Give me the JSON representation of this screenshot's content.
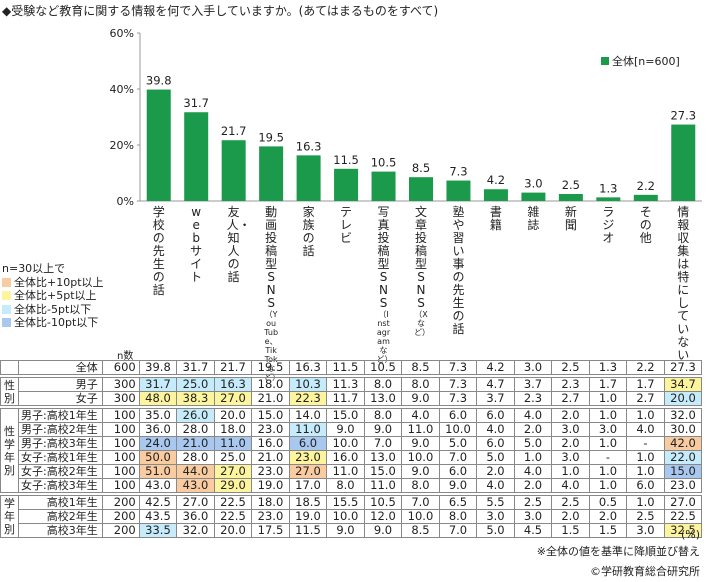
{
  "title": "◆受験など教育に関する情報を何で入手していますか。(あてはまるものをすべて)",
  "legend_label": "全体[n=600]",
  "colors": {
    "bar": "#1a9a4a",
    "orange": "#f8cba0",
    "yellow": "#fdf59e",
    "light_blue": "#c6ecfb",
    "blue": "#a9c8f0"
  },
  "chart_data": {
    "type": "bar",
    "categories": [
      "学校の先生の話",
      "webサイト",
      "友人・知人の話",
      "動画投稿型SNS",
      "家族の話",
      "テレビ",
      "写真投稿型SNS",
      "文章投稿型SNS",
      "塾や習い事の先生の話",
      "書籍",
      "雑誌",
      "新聞",
      "ラジオ",
      "その他",
      "情報収集は特にしていない"
    ],
    "category_subs": [
      "",
      "",
      "",
      "（YouTube、TikTokなど）",
      "",
      "",
      "（Instagramなど）",
      "（Xなど）",
      "",
      "",
      "",
      "",
      "",
      "",
      ""
    ],
    "series": [
      {
        "name": "全体[n=600]",
        "values": [
          39.8,
          31.7,
          21.7,
          19.5,
          16.3,
          11.5,
          10.5,
          8.5,
          7.3,
          4.2,
          3.0,
          2.5,
          1.3,
          2.2,
          27.3
        ]
      }
    ],
    "yticks": [
      "0%",
      "20%",
      "40%",
      "60%"
    ],
    "ylim": [
      0,
      60
    ],
    "grid": false,
    "legend": "top-right"
  },
  "key": {
    "header": "n=30以上で",
    "items": [
      {
        "label": "全体比+10pt以上",
        "color": "#f8cba0"
      },
      {
        "label": "全体比+5pt以上",
        "color": "#fdf59e"
      },
      {
        "label": "全体比-5pt以下",
        "color": "#c6ecfb"
      },
      {
        "label": "全体比-10pt以下",
        "color": "#a9c8f0"
      }
    ]
  },
  "n_label": "n数",
  "table": [
    {
      "group": "",
      "label": "全体",
      "n": "600",
      "values": [
        "39.8",
        "31.7",
        "21.7",
        "19.5",
        "16.3",
        "11.5",
        "10.5",
        "8.5",
        "7.3",
        "4.2",
        "3.0",
        "2.5",
        "1.3",
        "2.2",
        "27.3"
      ],
      "hl": [
        "",
        "",
        "",
        "",
        "",
        "",
        "",
        "",
        "",
        "",
        "",
        "",
        "",
        "",
        ""
      ]
    },
    {
      "group": "性別",
      "label": "男子",
      "n": "300",
      "values": [
        "31.7",
        "25.0",
        "16.3",
        "18.0",
        "10.3",
        "11.3",
        "8.0",
        "8.0",
        "7.3",
        "4.7",
        "3.7",
        "2.3",
        "1.7",
        "1.7",
        "34.7"
      ],
      "hl": [
        "lb",
        "lb",
        "lb",
        "",
        "lb",
        "",
        "",
        "",
        "",
        "",
        "",
        "",
        "",
        "",
        "y"
      ]
    },
    {
      "group": "",
      "label": "女子",
      "n": "300",
      "values": [
        "48.0",
        "38.3",
        "27.0",
        "21.0",
        "22.3",
        "11.7",
        "13.0",
        "9.0",
        "7.3",
        "3.7",
        "2.3",
        "2.7",
        "1.0",
        "2.7",
        "20.0"
      ],
      "hl": [
        "y",
        "y",
        "y",
        "",
        "y",
        "",
        "",
        "",
        "",
        "",
        "",
        "",
        "",
        "",
        "lb"
      ]
    },
    {
      "group": "性学年別",
      "label": "男子:高校1年生",
      "n": "100",
      "values": [
        "35.0",
        "26.0",
        "20.0",
        "15.0",
        "14.0",
        "15.0",
        "8.0",
        "4.0",
        "6.0",
        "6.0",
        "4.0",
        "2.0",
        "1.0",
        "1.0",
        "32.0"
      ],
      "hl": [
        "",
        "lb",
        "",
        "",
        "",
        "",
        "",
        "",
        "",
        "",
        "",
        "",
        "",
        "",
        ""
      ]
    },
    {
      "group": "",
      "label": "男子:高校2年生",
      "n": "100",
      "values": [
        "36.0",
        "28.0",
        "18.0",
        "23.0",
        "11.0",
        "9.0",
        "9.0",
        "11.0",
        "10.0",
        "4.0",
        "2.0",
        "3.0",
        "3.0",
        "4.0",
        "30.0"
      ],
      "hl": [
        "",
        "",
        "",
        "",
        "lb",
        "",
        "",
        "",
        "",
        "",
        "",
        "",
        "",
        "",
        ""
      ]
    },
    {
      "group": "",
      "label": "男子:高校3年生",
      "n": "100",
      "values": [
        "24.0",
        "21.0",
        "11.0",
        "16.0",
        "6.0",
        "10.0",
        "7.0",
        "9.0",
        "5.0",
        "6.0",
        "5.0",
        "2.0",
        "1.0",
        "-",
        "42.0"
      ],
      "hl": [
        "b",
        "b",
        "b",
        "",
        "b",
        "",
        "",
        "",
        "",
        "",
        "",
        "",
        "",
        "",
        "o"
      ]
    },
    {
      "group": "",
      "label": "女子:高校1年生",
      "n": "100",
      "values": [
        "50.0",
        "28.0",
        "25.0",
        "21.0",
        "23.0",
        "16.0",
        "13.0",
        "10.0",
        "7.0",
        "5.0",
        "1.0",
        "3.0",
        "-",
        "1.0",
        "22.0"
      ],
      "hl": [
        "o",
        "",
        "",
        "",
        "y",
        "",
        "",
        "",
        "",
        "",
        "",
        "",
        "",
        "",
        "lb"
      ]
    },
    {
      "group": "",
      "label": "女子:高校2年生",
      "n": "100",
      "values": [
        "51.0",
        "44.0",
        "27.0",
        "23.0",
        "27.0",
        "11.0",
        "15.0",
        "9.0",
        "6.0",
        "2.0",
        "4.0",
        "1.0",
        "1.0",
        "1.0",
        "15.0"
      ],
      "hl": [
        "o",
        "o",
        "y",
        "",
        "o",
        "",
        "",
        "",
        "",
        "",
        "",
        "",
        "",
        "",
        "b"
      ]
    },
    {
      "group": "",
      "label": "女子:高校3年生",
      "n": "100",
      "values": [
        "43.0",
        "43.0",
        "29.0",
        "19.0",
        "17.0",
        "8.0",
        "11.0",
        "8.0",
        "9.0",
        "4.0",
        "2.0",
        "4.0",
        "1.0",
        "6.0",
        "23.0"
      ],
      "hl": [
        "",
        "o",
        "y",
        "",
        "",
        "",
        "",
        "",
        "",
        "",
        "",
        "",
        "",
        "",
        ""
      ]
    },
    {
      "group": "学年別",
      "label": "高校1年生",
      "n": "200",
      "values": [
        "42.5",
        "27.0",
        "22.5",
        "18.0",
        "18.5",
        "15.5",
        "10.5",
        "7.0",
        "6.5",
        "5.5",
        "2.5",
        "2.5",
        "0.5",
        "1.0",
        "27.0"
      ],
      "hl": [
        "",
        "",
        "",
        "",
        "",
        "",
        "",
        "",
        "",
        "",
        "",
        "",
        "",
        "",
        ""
      ]
    },
    {
      "group": "",
      "label": "高校2年生",
      "n": "200",
      "values": [
        "43.5",
        "36.0",
        "22.5",
        "23.0",
        "19.0",
        "10.0",
        "12.0",
        "10.0",
        "8.0",
        "3.0",
        "3.0",
        "2.0",
        "2.0",
        "2.5",
        "22.5"
      ],
      "hl": [
        "",
        "",
        "",
        "",
        "",
        "",
        "",
        "",
        "",
        "",
        "",
        "",
        "",
        "",
        ""
      ]
    },
    {
      "group": "",
      "label": "高校3年生",
      "n": "200",
      "values": [
        "33.5",
        "32.0",
        "20.0",
        "17.5",
        "11.5",
        "9.0",
        "9.0",
        "8.5",
        "7.0",
        "5.0",
        "4.5",
        "1.5",
        "1.5",
        "3.0",
        "32.5"
      ],
      "hl": [
        "lb",
        "",
        "",
        "",
        "",
        "",
        "",
        "",
        "",
        "",
        "",
        "",
        "",
        "",
        "y"
      ]
    }
  ],
  "unit": "(%)",
  "note": "※全体の値を基準に降順並び替え",
  "credit": "©学研教育総合研究所"
}
